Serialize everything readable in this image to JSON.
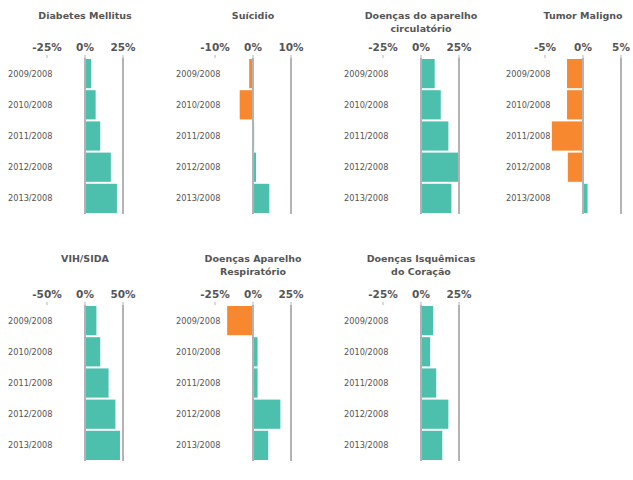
{
  "chart_data": [
    {
      "type": "bar",
      "orientation": "horizontal",
      "title": "Diabetes Mellitus",
      "categories": [
        "2009/2008",
        "2010/2008",
        "2011/2008",
        "2012/2008",
        "2013/2008"
      ],
      "values": [
        4,
        7,
        10,
        17,
        21
      ],
      "colors": [
        "#4cc0ad",
        "#4cc0ad",
        "#4cc0ad",
        "#4cc0ad",
        "#4cc0ad"
      ],
      "xlim": [
        -25,
        25
      ],
      "xticks": [
        {
          "value": -25,
          "label": "-25%"
        },
        {
          "value": 0,
          "label": "0%"
        },
        {
          "value": 25,
          "label": "25%"
        }
      ]
    },
    {
      "type": "bar",
      "orientation": "horizontal",
      "title": "Suícidio",
      "categories": [
        "2009/2008",
        "2010/2008",
        "2011/2008",
        "2012/2008",
        "2013/2008"
      ],
      "values": [
        -1,
        -3.5,
        0.3,
        0.8,
        4.3
      ],
      "colors": [
        "#f7882f",
        "#f7882f",
        "#4cc0ad",
        "#4cc0ad",
        "#4cc0ad"
      ],
      "xlim": [
        -10,
        10
      ],
      "xticks": [
        {
          "value": -10,
          "label": "-10%"
        },
        {
          "value": 0,
          "label": "0%"
        },
        {
          "value": 10,
          "label": "10%"
        }
      ]
    },
    {
      "type": "bar",
      "orientation": "horizontal",
      "title": "Doenças do aparelho\ncirculatório",
      "categories": [
        "2009/2008",
        "2010/2008",
        "2011/2008",
        "2012/2008",
        "2013/2008"
      ],
      "values": [
        9,
        13,
        18,
        24.5,
        20
      ],
      "colors": [
        "#4cc0ad",
        "#4cc0ad",
        "#4cc0ad",
        "#4cc0ad",
        "#4cc0ad"
      ],
      "xlim": [
        -25,
        25
      ],
      "xticks": [
        {
          "value": -25,
          "label": "-25%"
        },
        {
          "value": 0,
          "label": "0%"
        },
        {
          "value": 25,
          "label": "25%"
        }
      ]
    },
    {
      "type": "bar",
      "orientation": "horizontal",
      "title": "Tumor Maligno",
      "categories": [
        "2009/2008",
        "2010/2008",
        "2011/2008",
        "2012/2008",
        "2013/2008"
      ],
      "values": [
        -2.1,
        -2.1,
        -4.1,
        -2.0,
        0.6
      ],
      "colors": [
        "#f7882f",
        "#f7882f",
        "#f7882f",
        "#f7882f",
        "#4cc0ad"
      ],
      "xlim": [
        -5,
        5
      ],
      "xticks": [
        {
          "value": -5,
          "label": "-5%"
        },
        {
          "value": 0,
          "label": "0%"
        },
        {
          "value": 5,
          "label": "5%"
        }
      ]
    },
    {
      "type": "bar",
      "orientation": "horizontal",
      "title": "VIH/SIDA",
      "categories": [
        "2009/2008",
        "2010/2008",
        "2011/2008",
        "2012/2008",
        "2013/2008"
      ],
      "values": [
        15,
        20,
        31,
        40,
        46
      ],
      "colors": [
        "#4cc0ad",
        "#4cc0ad",
        "#4cc0ad",
        "#4cc0ad",
        "#4cc0ad"
      ],
      "xlim": [
        -50,
        50
      ],
      "xticks": [
        {
          "value": -50,
          "label": "-50%"
        },
        {
          "value": 0,
          "label": "0%"
        },
        {
          "value": 50,
          "label": "50%"
        }
      ]
    },
    {
      "type": "bar",
      "orientation": "horizontal",
      "title": "Doenças Aparelho\nRespiratório",
      "categories": [
        "2009/2008",
        "2010/2008",
        "2011/2008",
        "2012/2008",
        "2013/2008"
      ],
      "values": [
        -17,
        3,
        3,
        18,
        10
      ],
      "colors": [
        "#f7882f",
        "#4cc0ad",
        "#4cc0ad",
        "#4cc0ad",
        "#4cc0ad"
      ],
      "xlim": [
        -25,
        25
      ],
      "xticks": [
        {
          "value": -25,
          "label": "-25%"
        },
        {
          "value": 0,
          "label": "0%"
        },
        {
          "value": 25,
          "label": "25%"
        }
      ]
    },
    {
      "type": "bar",
      "orientation": "horizontal",
      "title": "Doenças Isquêmicas\ndo Coração",
      "categories": [
        "2009/2008",
        "2010/2008",
        "2011/2008",
        "2012/2008",
        "2013/2008"
      ],
      "values": [
        8,
        6,
        10,
        18,
        14
      ],
      "colors": [
        "#4cc0ad",
        "#4cc0ad",
        "#4cc0ad",
        "#4cc0ad",
        "#4cc0ad"
      ],
      "xlim": [
        -25,
        25
      ],
      "xticks": [
        {
          "value": -25,
          "label": "-25%"
        },
        {
          "value": 0,
          "label": "0%"
        },
        {
          "value": 25,
          "label": "25%"
        }
      ]
    }
  ]
}
